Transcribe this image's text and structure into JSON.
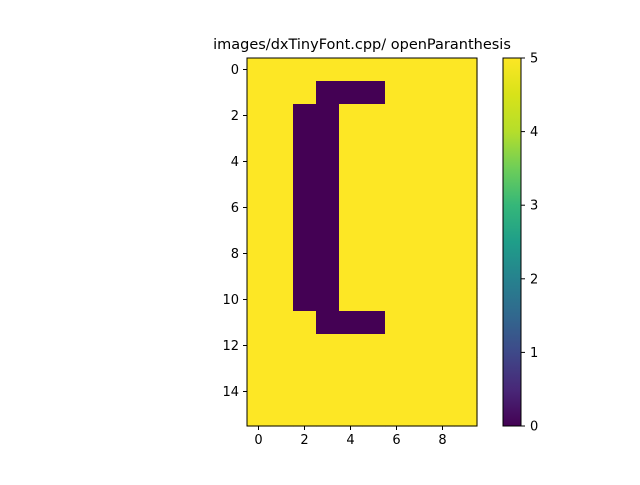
{
  "chart_data": {
    "type": "heatmap",
    "title": "images/dxTinyFont.cpp/ openParanthesis",
    "xlabel": "",
    "ylabel": "",
    "x_ticks": [
      "0",
      "2",
      "4",
      "6",
      "8"
    ],
    "y_ticks": [
      "0",
      "2",
      "4",
      "6",
      "8",
      "10",
      "12",
      "14"
    ],
    "colorbar_ticks": [
      "0",
      "1",
      "2",
      "3",
      "4",
      "5"
    ],
    "colormap": "viridis",
    "vmin": 0,
    "vmax": 5,
    "xlim": [
      -0.5,
      9.5
    ],
    "ylim": [
      15.5,
      -0.5
    ],
    "rows": 16,
    "cols": 10,
    "grid": false,
    "values": [
      [
        5,
        5,
        5,
        5,
        5,
        5,
        5,
        5,
        5,
        5
      ],
      [
        5,
        5,
        5,
        0,
        0,
        0,
        5,
        5,
        5,
        5
      ],
      [
        5,
        5,
        0,
        0,
        5,
        5,
        5,
        5,
        5,
        5
      ],
      [
        5,
        5,
        0,
        0,
        5,
        5,
        5,
        5,
        5,
        5
      ],
      [
        5,
        5,
        0,
        0,
        5,
        5,
        5,
        5,
        5,
        5
      ],
      [
        5,
        5,
        0,
        0,
        5,
        5,
        5,
        5,
        5,
        5
      ],
      [
        5,
        5,
        0,
        0,
        5,
        5,
        5,
        5,
        5,
        5
      ],
      [
        5,
        5,
        0,
        0,
        5,
        5,
        5,
        5,
        5,
        5
      ],
      [
        5,
        5,
        0,
        0,
        5,
        5,
        5,
        5,
        5,
        5
      ],
      [
        5,
        5,
        0,
        0,
        5,
        5,
        5,
        5,
        5,
        5
      ],
      [
        5,
        5,
        0,
        0,
        5,
        5,
        5,
        5,
        5,
        5
      ],
      [
        5,
        5,
        5,
        0,
        0,
        0,
        5,
        5,
        5,
        5
      ],
      [
        5,
        5,
        5,
        5,
        5,
        5,
        5,
        5,
        5,
        5
      ],
      [
        5,
        5,
        5,
        5,
        5,
        5,
        5,
        5,
        5,
        5
      ],
      [
        5,
        5,
        5,
        5,
        5,
        5,
        5,
        5,
        5,
        5
      ],
      [
        5,
        5,
        5,
        5,
        5,
        5,
        5,
        5,
        5,
        5
      ]
    ]
  },
  "colors": {
    "low": "#440154",
    "high": "#fde725",
    "axis": "#000000"
  }
}
